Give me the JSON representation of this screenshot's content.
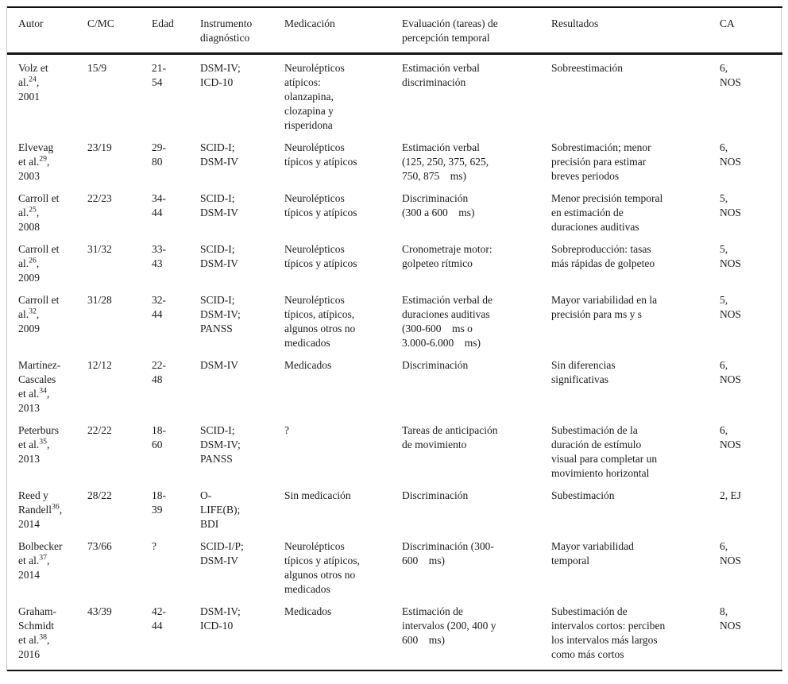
{
  "table": {
    "columns": [
      {
        "label": "Autor"
      },
      {
        "label": "C/MC"
      },
      {
        "label": "Edad"
      },
      {
        "label": "Instrumento\ndiagnóstico"
      },
      {
        "label": "Medicación"
      },
      {
        "label": "Evaluación (tareas) de\npercepción temporal"
      },
      {
        "label": "Resultados"
      },
      {
        "label": "CA"
      }
    ],
    "rows": [
      {
        "author_pre": "Volz et\nal.",
        "author_ref": "24",
        "author_post": ",\n2001",
        "c_mc": "15/9",
        "edad": "21-\n54",
        "instrumento": "DSM-IV;\nICD-10",
        "medicacion": "Neurolépticos\natípicos:\nolanzapina,\nclozapina y\nrisperidona",
        "evaluacion": "Estimación verbal\ndiscriminación",
        "resultados": "Sobreestimación",
        "ca": "6,\nNOS"
      },
      {
        "author_pre": "Elvevag\net al.",
        "author_ref": "29",
        "author_post": ",\n2003",
        "c_mc": "23/19",
        "edad": "29-\n80",
        "instrumento": "SCID-I;\nDSM-IV",
        "medicacion": "Neurolépticos\ntípicos y atípicos",
        "evaluacion": "Estimación verbal\n(125, 250, 375, 625,\n750, 875    ms)",
        "resultados": "Sobrestimación; menor\nprecisión para estimar\nbreves periodos",
        "ca": "6,\nNOS"
      },
      {
        "author_pre": "Carroll et\nal.",
        "author_ref": "25",
        "author_post": ",\n2008",
        "c_mc": "22/23",
        "edad": "34-\n44",
        "instrumento": "SCID-I;\nDSM-IV",
        "medicacion": "Neurolépticos\ntípicos y atípicos",
        "evaluacion": "Discriminación\n(300 a 600    ms)",
        "resultados": "Menor precisión temporal\nen estimación de\nduraciones auditivas",
        "ca": "5,\nNOS"
      },
      {
        "author_pre": "Carroll et\nal.",
        "author_ref": "26",
        "author_post": ",\n2009",
        "c_mc": "31/32",
        "edad": "33-\n43",
        "instrumento": "SCID-I;\nDSM-IV",
        "medicacion": "Neurolépticos\ntípicos y atípicos",
        "evaluacion": "Cronometraje motor:\ngolpeteo rítmico",
        "resultados": "Sobreproducción: tasas\nmás rápidas de golpeteo",
        "ca": "5,\nNOS"
      },
      {
        "author_pre": "Carroll et\nal.",
        "author_ref": "32",
        "author_post": ",\n2009",
        "c_mc": "31/28",
        "edad": "32-\n44",
        "instrumento": "SCID-I;\nDSM-IV;\nPANSS",
        "medicacion": "Neurolépticos\ntípicos, atípicos,\nalgunos otros no\nmedicados",
        "evaluacion": "Estimación verbal de\nduraciones auditivas\n(300-600    ms o\n3.000-6.000    ms)",
        "resultados": "Mayor variabilidad en la\nprecisión para ms y s",
        "ca": "5,\nNOS"
      },
      {
        "author_pre": "Martínez-\nCascales\net al.",
        "author_ref": "34",
        "author_post": ",\n2013",
        "c_mc": "12/12",
        "edad": "22-\n48",
        "instrumento": "DSM-IV",
        "medicacion": "Medicados",
        "evaluacion": "Discriminación",
        "resultados": "Sin diferencias\nsignificativas",
        "ca": "6,\nNOS"
      },
      {
        "author_pre": "Peterburs\net al.",
        "author_ref": "35",
        "author_post": ",\n2013",
        "c_mc": "22/22",
        "edad": "18-\n60",
        "instrumento": "SCID-I;\nDSM-IV;\nPANSS",
        "medicacion": "?",
        "evaluacion": "Tareas de anticipación\nde movimiento",
        "resultados": "Subestimación de la\nduración de estímulo\nvisual para completar un\nmovimiento horizontal",
        "ca": "6,\nNOS"
      },
      {
        "author_pre": "Reed y\nRandell",
        "author_ref": "36",
        "author_post": ",\n2014",
        "c_mc": "28/22",
        "edad": "18-\n39",
        "instrumento": "O-\nLIFE(B);\nBDI",
        "medicacion": "Sin medicación",
        "evaluacion": "Discriminación",
        "resultados": "Subestimación",
        "ca": "2, EJ"
      },
      {
        "author_pre": "Bolbecker\net al.",
        "author_ref": "37",
        "author_post": ",\n2014",
        "c_mc": "73/66",
        "edad": "?",
        "instrumento": "SCID-I/P;\nDSM-IV",
        "medicacion": "Neurolépticos\ntípicos y atípicos,\nalgunos otros no\nmedicados",
        "evaluacion": "Discriminación (300-\n600    ms)",
        "resultados": "Mayor variabilidad\ntemporal",
        "ca": "6,\nNOS"
      },
      {
        "author_pre": "Graham-\nSchmidt\net al.",
        "author_ref": "38",
        "author_post": ",\n2016",
        "c_mc": "43/39",
        "edad": "42-\n44",
        "instrumento": "DSM-IV;\nICD-10",
        "medicacion": "Medicados",
        "evaluacion": "Estimación de\nintervalos (200, 400 y\n600    ms)",
        "resultados": "Subestimación de\nintervalos cortos: perciben\nlos intervalos más largos\ncomo más cortos",
        "ca": "8,\nNOS"
      }
    ]
  }
}
